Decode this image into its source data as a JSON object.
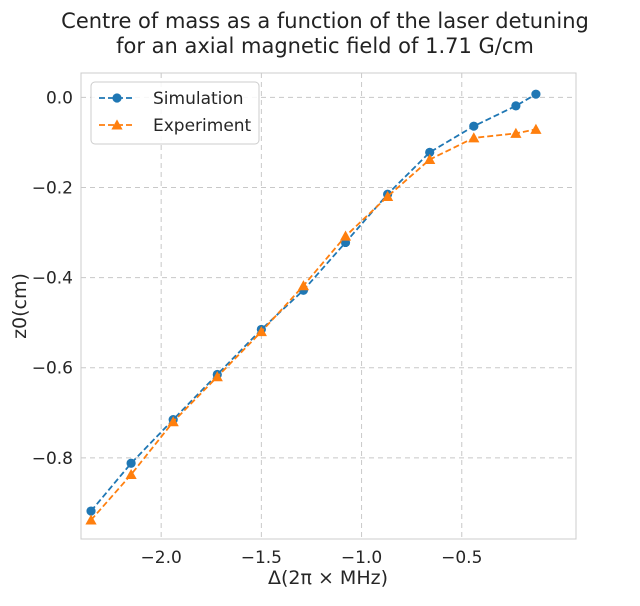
{
  "chart_data": {
    "type": "line",
    "title_line1": "Centre of mass as a function of the laser detuning",
    "title_line2": "for an axial magnetic field of 1.71 G/cm",
    "xlabel": "Δ(2π × MHz)",
    "ylabel": "z0(cm)",
    "xlim": [
      -2.4,
      0.07
    ],
    "ylim": [
      -0.98,
      0.054
    ],
    "xticks": [
      -2.0,
      -1.5,
      -1.0,
      -0.5
    ],
    "xtick_labels": [
      "−2.0",
      "−1.5",
      "−1.0",
      "−0.5"
    ],
    "yticks": [
      0.0,
      -0.2,
      -0.4,
      -0.6,
      -0.8
    ],
    "ytick_labels": [
      "0.0",
      "−0.2",
      "−0.4",
      "−0.6",
      "−0.8"
    ],
    "grid": true,
    "legend_position": "upper-left",
    "series": [
      {
        "name": "Simulation",
        "marker": "circle",
        "linestyle": "dashed",
        "color": "#1f77b4",
        "x": [
          -2.35,
          -2.15,
          -1.94,
          -1.72,
          -1.5,
          -1.29,
          -1.08,
          -0.87,
          -0.66,
          -0.44,
          -0.23,
          -0.13
        ],
        "y": [
          -0.918,
          -0.812,
          -0.715,
          -0.615,
          -0.515,
          -0.428,
          -0.322,
          -0.215,
          -0.122,
          -0.064,
          -0.019,
          0.007
        ]
      },
      {
        "name": "Experiment",
        "marker": "triangle",
        "linestyle": "dashed",
        "color": "#ff7f0e",
        "x": [
          -2.35,
          -2.15,
          -1.94,
          -1.72,
          -1.5,
          -1.29,
          -1.08,
          -0.87,
          -0.66,
          -0.44,
          -0.23,
          -0.13
        ],
        "y": [
          -0.938,
          -0.837,
          -0.72,
          -0.62,
          -0.52,
          -0.418,
          -0.308,
          -0.22,
          -0.138,
          -0.09,
          -0.08,
          -0.071
        ]
      }
    ]
  }
}
